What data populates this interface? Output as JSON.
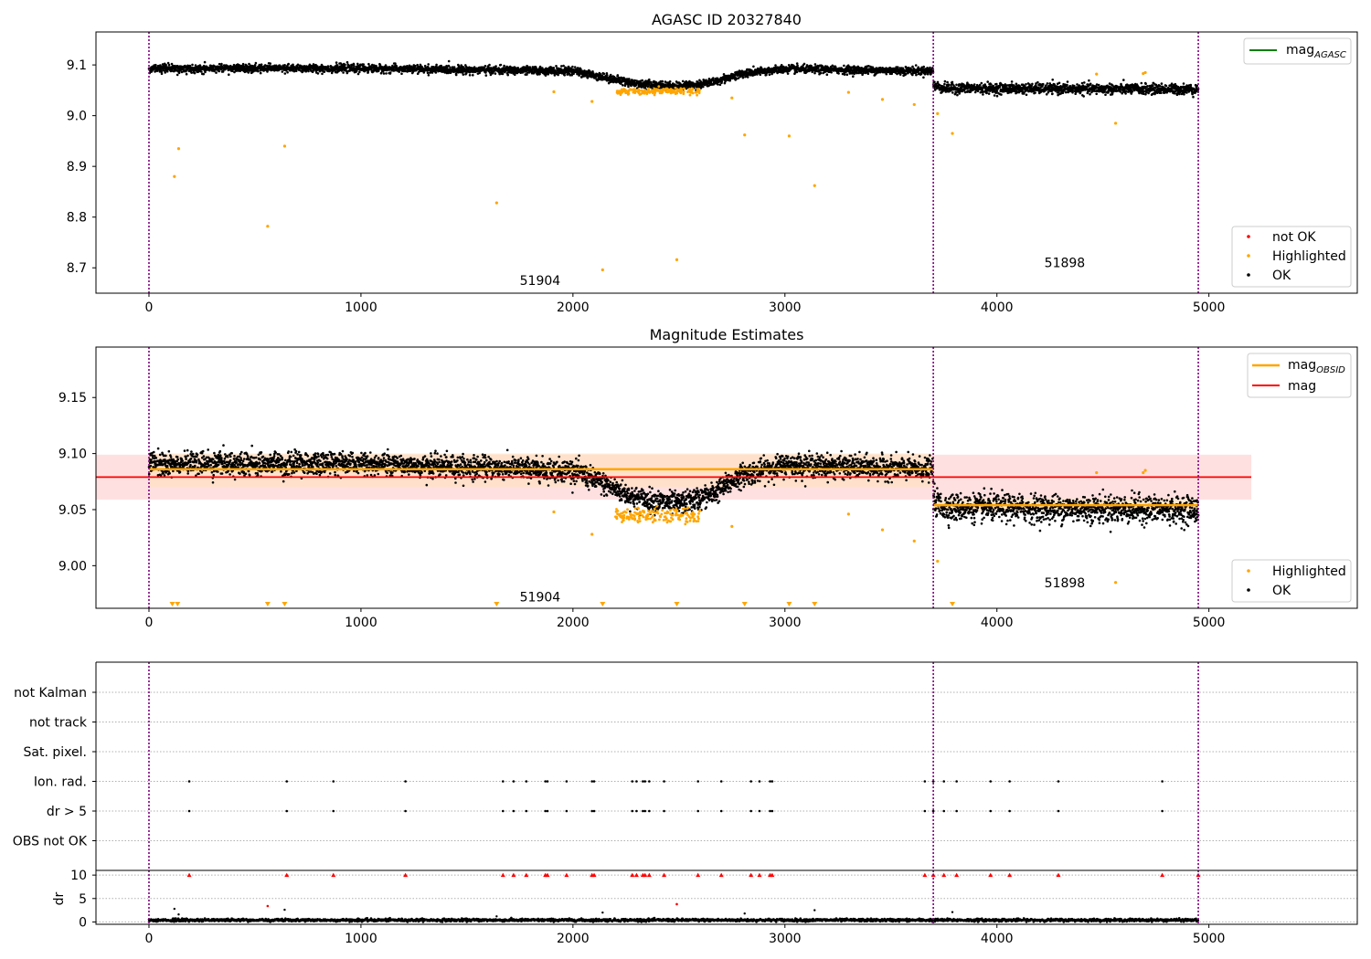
{
  "colors": {
    "ok": "#000000",
    "highlighted": "#ffa500",
    "not_ok": "#ff0000",
    "mag_agasc": "#008000",
    "mag_obsid": "#ffa500",
    "mag": "#ff0000",
    "band": "#ffd6d6",
    "band_obsid": "#ffe2c4",
    "obs_boundary": "#800080",
    "grid": "#b0b0b0"
  },
  "chart_data": [
    {
      "id": "agasc",
      "type": "scatter",
      "title": "AGASC ID 20327840",
      "xlim": [
        -250,
        5700
      ],
      "ylim": [
        8.65,
        9.165
      ],
      "xticks": [
        0,
        1000,
        2000,
        3000,
        4000,
        5000
      ],
      "xticklabels": [
        "0",
        "1000",
        "2000",
        "3000",
        "4000",
        "5000"
      ],
      "yticks": [
        8.7,
        8.8,
        8.9,
        9.0,
        9.1
      ],
      "yticklabels": [
        "8.7",
        "8.8",
        "8.9",
        "9.0",
        "9.1"
      ],
      "obs_boundaries": [
        0,
        3700,
        4950
      ],
      "obs_labels": [
        {
          "text": "51904",
          "x": 1845,
          "y": 8.675
        },
        {
          "text": "51898",
          "x": 4320,
          "y": 8.71
        }
      ],
      "ok_segments": [
        {
          "x": [
            0,
            1000,
            2000,
            2300,
            2500,
            2650,
            2800,
            3000,
            3700
          ],
          "y": [
            9.093,
            9.093,
            9.088,
            9.063,
            9.058,
            9.065,
            9.083,
            9.092,
            9.088
          ],
          "noise": 0.007
        },
        {
          "x": [
            3700,
            3750,
            4950
          ],
          "y": [
            9.06,
            9.054,
            9.052
          ],
          "noise": 0.009
        }
      ],
      "ok_count": 5000,
      "highlighted_band": {
        "x_range": [
          2200,
          2600
        ],
        "y": 9.048,
        "noise": 0.005
      },
      "highlighted_points": {
        "x": [
          120,
          140,
          560,
          640,
          1640,
          1910,
          2090,
          2140,
          2490,
          2750,
          2810,
          3020,
          3140,
          3300,
          3460,
          3610,
          3720,
          3790,
          4470,
          4560,
          4690,
          4700
        ],
        "y": [
          8.88,
          8.935,
          8.782,
          8.94,
          8.828,
          9.047,
          9.028,
          8.696,
          8.716,
          9.035,
          8.962,
          8.96,
          8.862,
          9.046,
          9.032,
          9.022,
          9.004,
          8.965,
          9.082,
          8.985,
          9.083,
          9.085
        ]
      },
      "lines": [],
      "legend_top": {
        "loc": "upper right",
        "entries": [
          {
            "label": "mag",
            "subscript": "AGASC",
            "color_key": "mag_agasc"
          }
        ]
      },
      "legend_bottom": {
        "loc": "lower right",
        "entries": [
          {
            "label": "not OK",
            "color_key": "not_ok"
          },
          {
            "label": "Highlighted",
            "color_key": "highlighted"
          },
          {
            "label": "OK",
            "color_key": "ok"
          }
        ]
      }
    },
    {
      "id": "mag-estimates",
      "type": "scatter",
      "title": "Magnitude Estimates",
      "xlim": [
        -250,
        5700
      ],
      "ylim": [
        8.962,
        9.195
      ],
      "xticks": [
        0,
        1000,
        2000,
        3000,
        4000,
        5000
      ],
      "xticklabels": [
        "0",
        "1000",
        "2000",
        "3000",
        "4000",
        "5000"
      ],
      "yticks": [
        9.0,
        9.05,
        9.1,
        9.15
      ],
      "yticklabels": [
        "9.00",
        "9.05",
        "9.10",
        "9.15"
      ],
      "obs_boundaries": [
        0,
        3700,
        4950
      ],
      "obs_labels": [
        {
          "text": "51904",
          "x": 1845,
          "y": 8.972
        },
        {
          "text": "51898",
          "x": 4320,
          "y": 8.985
        }
      ],
      "ok_segments": [
        {
          "x": [
            0,
            1000,
            2000,
            2300,
            2500,
            2650,
            2800,
            3000,
            3700
          ],
          "y": [
            9.091,
            9.091,
            9.085,
            9.06,
            9.055,
            9.063,
            9.081,
            9.09,
            9.086
          ],
          "noise": 0.009
        },
        {
          "x": [
            3700,
            3750,
            4950
          ],
          "y": [
            9.058,
            9.052,
            9.05
          ],
          "noise": 0.011
        }
      ],
      "ok_count": 5000,
      "highlighted_band": {
        "x_range": [
          2200,
          2600
        ],
        "y": 9.045,
        "noise": 0.006
      },
      "highlighted_points": {
        "x": [
          1910,
          2090,
          2750,
          3300,
          3460,
          3610,
          3720,
          4470,
          4560,
          4690,
          4700
        ],
        "y": [
          9.048,
          9.028,
          9.035,
          9.046,
          9.032,
          9.022,
          9.004,
          9.083,
          8.985,
          9.083,
          9.085
        ]
      },
      "offscale_markers_x": [
        110,
        135,
        560,
        640,
        1640,
        2140,
        2490,
        2810,
        3020,
        3140,
        3790
      ],
      "bands": [
        {
          "x_range": [
            -250,
            5200
          ],
          "y_range": [
            9.059,
            9.099
          ],
          "color_key": "band"
        },
        {
          "x_range": [
            0,
            3700
          ],
          "y_range": [
            9.07,
            9.1
          ],
          "color_key": "band_obsid"
        },
        {
          "x_range": [
            3700,
            4950
          ],
          "y_range": [
            9.048,
            9.06
          ],
          "color_key": "band_obsid"
        }
      ],
      "lines": [
        {
          "x": [
            0,
            3700
          ],
          "y": [
            9.086,
            9.086
          ],
          "color_key": "mag_obsid",
          "width": 2.5
        },
        {
          "x": [
            3700,
            4950
          ],
          "y": [
            9.054,
            9.054
          ],
          "color_key": "mag_obsid",
          "width": 2.5
        },
        {
          "x": [
            -250,
            5200
          ],
          "y": [
            9.079,
            9.079
          ],
          "color_key": "mag",
          "width": 1.8
        }
      ],
      "legend_top": {
        "loc": "upper right",
        "entries": [
          {
            "label": "mag",
            "subscript": "OBSID",
            "color_key": "mag_obsid"
          },
          {
            "label": "mag",
            "subscript": "",
            "color_key": "mag"
          }
        ]
      },
      "legend_bottom": {
        "loc": "lower right",
        "entries": [
          {
            "label": "Highlighted",
            "color_key": "highlighted"
          },
          {
            "label": "OK",
            "color_key": "ok"
          }
        ]
      }
    },
    {
      "id": "flags",
      "type": "scatter",
      "title": "",
      "xlim": [
        -250,
        5700
      ],
      "categories": [
        "not Kalman",
        "not track",
        "Sat. pixel.",
        "Ion. rad.",
        "dr > 5",
        "OBS not OK"
      ],
      "flag_x": [
        190,
        650,
        870,
        1210,
        1670,
        1720,
        1780,
        1870,
        1880,
        1970,
        2090,
        2100,
        2280,
        2300,
        2330,
        2340,
        2360,
        2430,
        2590,
        2700,
        2840,
        2880,
        2930,
        2940,
        3660,
        3700,
        3750,
        3810,
        3970,
        4060,
        4290,
        4780
      ],
      "flag_rows": [
        "Ion. rad.",
        "dr > 5"
      ],
      "obs_boundaries": [
        0,
        3700,
        4950
      ]
    },
    {
      "id": "dr",
      "type": "scatter",
      "title": "",
      "ylabel": "dr",
      "xlim": [
        -250,
        5700
      ],
      "ylim": [
        -0.5,
        11
      ],
      "yticks": [
        0,
        5,
        10
      ],
      "yticklabels": [
        "0",
        "5",
        "10"
      ],
      "xticks": [
        0,
        1000,
        2000,
        3000,
        4000,
        5000
      ],
      "xticklabels": [
        "0",
        "1000",
        "2000",
        "3000",
        "4000",
        "5000"
      ],
      "ok_range": [
        0,
        4950
      ],
      "ok_count": 5000,
      "ok_level": 0.4,
      "ok_noise": 0.25,
      "outliers": {
        "x": [
          120,
          140,
          640,
          1640,
          2140,
          2810,
          3140,
          3790
        ],
        "y": [
          2.8,
          1.6,
          2.6,
          1.2,
          2.0,
          1.8,
          2.5,
          2.1
        ]
      },
      "not_ok_points": {
        "x": [
          560,
          2490
        ],
        "y": [
          3.4,
          3.8
        ]
      },
      "capped_x": [
        190,
        650,
        870,
        1210,
        1670,
        1720,
        1780,
        1870,
        1880,
        1970,
        2090,
        2100,
        2280,
        2300,
        2330,
        2340,
        2360,
        2430,
        2590,
        2700,
        2840,
        2880,
        2930,
        2940,
        3660,
        3700,
        3750,
        3810,
        3970,
        4060,
        4290,
        4780,
        4950
      ],
      "capped_value": 10,
      "obs_boundaries": [
        0,
        3700,
        4950
      ]
    }
  ]
}
